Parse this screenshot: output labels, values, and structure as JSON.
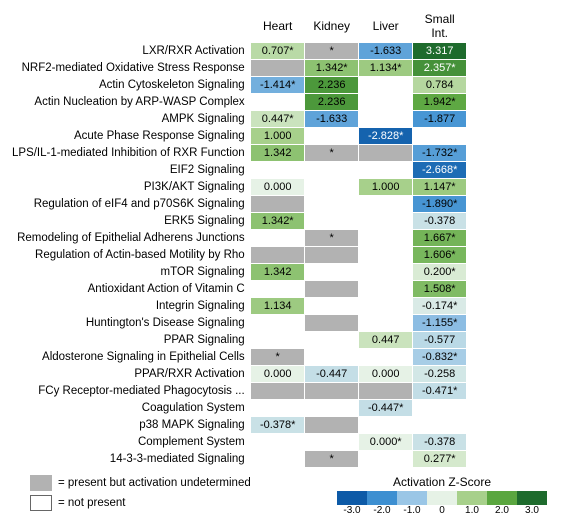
{
  "heatmap": {
    "type": "heatmap",
    "columns": [
      "Heart",
      "Kidney",
      "Liver",
      "Small Int."
    ],
    "rows": [
      "LXR/RXR Activation",
      "NRF2-mediated Oxidative Stress Response",
      "Actin Cytoskeleton Signaling",
      "Actin Nucleation by ARP-WASP Complex",
      "AMPK Signaling",
      "Acute Phase Response Signaling",
      "LPS/IL-1-mediated Inhibition of RXR Function",
      "EIF2 Signaling",
      "PI3K/AKT Signaling",
      "Regulation of eIF4 and p70S6K Signaling",
      "ERK5 Signaling",
      "Remodeling of Epithelial Adherens Junctions",
      "Regulation of Actin-based Motility by Rho",
      "mTOR Signaling",
      "Antioxidant Action of Vitamin C",
      "Integrin Signaling",
      "Huntington's Disease Signaling",
      "PPAR Signaling",
      "Aldosterone Signaling in Epithelial Cells",
      "PPAR/RXR Activation",
      "FCy Receptor-mediated Phagocytosis ...",
      "Coagulation System",
      "p38 MAPK Signaling",
      "Complement System",
      "14-3-3-mediated Signaling"
    ],
    "cells": [
      [
        {
          "v": 0.707,
          "s": true
        },
        {
          "v": "und",
          "s": true
        },
        {
          "v": -1.633,
          "s": false
        },
        {
          "v": 3.317,
          "s": false
        }
      ],
      [
        {
          "v": "und",
          "s": false
        },
        {
          "v": 1.342,
          "s": true
        },
        {
          "v": 1.134,
          "s": true
        },
        {
          "v": 2.357,
          "s": true
        }
      ],
      [
        {
          "v": -1.414,
          "s": true
        },
        {
          "v": 2.236,
          "s": false
        },
        {
          "v": null,
          "s": false
        },
        {
          "v": 0.784,
          "s": false
        }
      ],
      [
        {
          "v": null,
          "s": false
        },
        {
          "v": 2.236,
          "s": false
        },
        {
          "v": null,
          "s": false
        },
        {
          "v": 1.942,
          "s": true
        }
      ],
      [
        {
          "v": 0.447,
          "s": true
        },
        {
          "v": -1.633,
          "s": false
        },
        {
          "v": null,
          "s": false
        },
        {
          "v": -1.877,
          "s": false
        }
      ],
      [
        {
          "v": 1.0,
          "s": false
        },
        {
          "v": null,
          "s": false
        },
        {
          "v": -2.828,
          "s": true
        },
        {
          "v": null,
          "s": false
        }
      ],
      [
        {
          "v": 1.342,
          "s": false
        },
        {
          "v": "und",
          "s": true
        },
        {
          "v": "und",
          "s": false
        },
        {
          "v": -1.732,
          "s": true
        }
      ],
      [
        {
          "v": null,
          "s": false
        },
        {
          "v": null,
          "s": false
        },
        {
          "v": null,
          "s": false
        },
        {
          "v": -2.668,
          "s": true
        }
      ],
      [
        {
          "v": 0.0,
          "s": false
        },
        {
          "v": null,
          "s": false
        },
        {
          "v": 1.0,
          "s": false
        },
        {
          "v": 1.147,
          "s": true
        }
      ],
      [
        {
          "v": "und",
          "s": false
        },
        {
          "v": null,
          "s": false
        },
        {
          "v": null,
          "s": false
        },
        {
          "v": -1.89,
          "s": true
        }
      ],
      [
        {
          "v": 1.342,
          "s": true
        },
        {
          "v": null,
          "s": false
        },
        {
          "v": null,
          "s": false
        },
        {
          "v": -0.378,
          "s": false
        }
      ],
      [
        {
          "v": null,
          "s": false
        },
        {
          "v": "und",
          "s": true
        },
        {
          "v": null,
          "s": false
        },
        {
          "v": 1.667,
          "s": true
        }
      ],
      [
        {
          "v": "und",
          "s": false
        },
        {
          "v": "und",
          "s": false
        },
        {
          "v": null,
          "s": false
        },
        {
          "v": 1.606,
          "s": true
        }
      ],
      [
        {
          "v": 1.342,
          "s": false
        },
        {
          "v": null,
          "s": false
        },
        {
          "v": null,
          "s": false
        },
        {
          "v": 0.2,
          "s": true
        }
      ],
      [
        {
          "v": null,
          "s": false
        },
        {
          "v": "und",
          "s": false
        },
        {
          "v": null,
          "s": false
        },
        {
          "v": 1.508,
          "s": true
        }
      ],
      [
        {
          "v": 1.134,
          "s": false
        },
        {
          "v": null,
          "s": false
        },
        {
          "v": null,
          "s": false
        },
        {
          "v": -0.174,
          "s": true
        }
      ],
      [
        {
          "v": null,
          "s": false
        },
        {
          "v": "und",
          "s": false
        },
        {
          "v": null,
          "s": false
        },
        {
          "v": -1.155,
          "s": true
        }
      ],
      [
        {
          "v": null,
          "s": false
        },
        {
          "v": null,
          "s": false
        },
        {
          "v": 0.447,
          "s": false
        },
        {
          "v": -0.577,
          "s": false
        }
      ],
      [
        {
          "v": "und",
          "s": true
        },
        {
          "v": null,
          "s": false
        },
        {
          "v": null,
          "s": false
        },
        {
          "v": -0.832,
          "s": true
        }
      ],
      [
        {
          "v": 0.0,
          "s": false
        },
        {
          "v": -0.447,
          "s": false
        },
        {
          "v": 0.0,
          "s": false
        },
        {
          "v": -0.258,
          "s": false
        }
      ],
      [
        {
          "v": "und",
          "s": false
        },
        {
          "v": "und",
          "s": false
        },
        {
          "v": "und",
          "s": false
        },
        {
          "v": -0.471,
          "s": true
        }
      ],
      [
        {
          "v": null,
          "s": false
        },
        {
          "v": null,
          "s": false
        },
        {
          "v": -0.447,
          "s": true
        },
        {
          "v": null,
          "s": false
        }
      ],
      [
        {
          "v": -0.378,
          "s": true
        },
        {
          "v": "und",
          "s": false
        },
        {
          "v": null,
          "s": false
        },
        {
          "v": null,
          "s": false
        }
      ],
      [
        {
          "v": null,
          "s": false
        },
        {
          "v": null,
          "s": false
        },
        {
          "v": 0.0,
          "s": true
        },
        {
          "v": -0.378,
          "s": false
        }
      ],
      [
        {
          "v": null,
          "s": false
        },
        {
          "v": "und",
          "s": true
        },
        {
          "v": null,
          "s": false
        },
        {
          "v": 0.277,
          "s": true
        }
      ]
    ],
    "colorscale": {
      "stops": [
        {
          "v": -3.0,
          "c": "#0d5aa7"
        },
        {
          "v": -2.0,
          "c": "#3d8fd1"
        },
        {
          "v": -1.0,
          "c": "#9ac6e6"
        },
        {
          "v": 0.0,
          "c": "#e6f2e6"
        },
        {
          "v": 1.0,
          "c": "#a7d08b"
        },
        {
          "v": 2.0,
          "c": "#5aa63f"
        },
        {
          "v": 3.0,
          "c": "#1e6b2d"
        }
      ],
      "undetermined": "#b2b2b2",
      "notpresent": "#ffffff"
    },
    "text_light": "#ffffff",
    "text_dark": "#000000",
    "font_size_cell": 11,
    "font_size_label": 11.5,
    "font_size_header": 12
  },
  "legend": {
    "undetermined_label": "= present but activation undetermined",
    "notpresent_label": "= not present",
    "scale_title": "Activation Z-Score",
    "scale_ticks": [
      "-3.0",
      "-2.0",
      "-1.0",
      "0",
      "1.0",
      "2.0",
      "3.0"
    ]
  }
}
